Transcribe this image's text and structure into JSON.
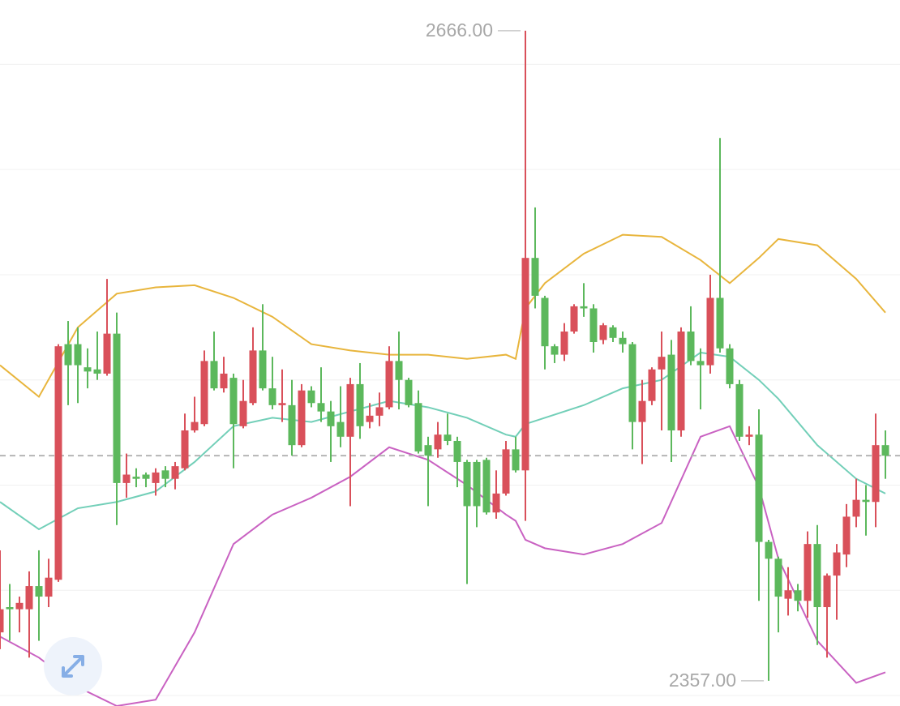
{
  "chart_data": {
    "type": "candlestick",
    "ylim": [
      2345,
      2680.6
    ],
    "grid_values": [
      2350,
      2400,
      2450,
      2500,
      2550,
      2600,
      2650
    ],
    "grid": true,
    "up_color": "#d9505a",
    "down_color": "#5cb85c",
    "last_price": 2464,
    "open": [
      2380,
      2392,
      2391,
      2391,
      2402,
      2397,
      2405,
      2517,
      2517,
      2506,
      2505,
      2503,
      2522,
      2451,
      2454,
      2455,
      2451,
      2457,
      2453,
      2458,
      2476,
      2479,
      2509,
      2496,
      2501,
      2478,
      2489,
      2514,
      2496,
      2488,
      2488,
      2469,
      2495,
      2489,
      2485,
      2480,
      2473,
      2498,
      2480,
      2483,
      2487,
      2509,
      2500,
      2489,
      2469,
      2467,
      2474,
      2471,
      2461,
      2461,
      2462,
      2437,
      2446,
      2467,
      2457,
      2558,
      2539,
      2516,
      2512,
      2523,
      2535,
      2534,
      2519,
      2525,
      2520,
      2517,
      2480,
      2490,
      2505,
      2512,
      2476,
      2523,
      2509,
      2507,
      2539,
      2515,
      2498,
      2473,
      2474,
      2423,
      2415,
      2396,
      2400,
      2395,
      2422,
      2392,
      2407,
      2417,
      2435,
      2443,
      2442,
      2469
    ],
    "high": [
      2419,
      2403,
      2397,
      2409,
      2419,
      2415,
      2517,
      2528,
      2525,
      2515,
      2523,
      2548,
      2532,
      2465,
      2458,
      2456,
      2458,
      2459,
      2461,
      2484,
      2492,
      2514,
      2523,
      2511,
      2503,
      2500,
      2525,
      2536,
      2511,
      2505,
      2500,
      2498,
      2497,
      2506,
      2490,
      2497,
      2501,
      2508,
      2489,
      2494,
      2516,
      2523,
      2501,
      2495,
      2473,
      2480,
      2484,
      2473,
      2462,
      2462,
      2463,
      2457,
      2471,
      2473,
      2666,
      2582,
      2540,
      2517,
      2527,
      2536,
      2546,
      2536,
      2527,
      2526,
      2523,
      2518,
      2500,
      2506,
      2523,
      2519,
      2525,
      2535,
      2515,
      2550,
      2615,
      2517,
      2500,
      2478,
      2486,
      2424,
      2416,
      2411,
      2403,
      2428,
      2431,
      2408,
      2422,
      2441,
      2453,
      2450,
      2484,
      2476
    ],
    "low": [
      2372,
      2376,
      2380,
      2368,
      2376,
      2392,
      2404,
      2488,
      2489,
      2496,
      2500,
      2502,
      2431,
      2444,
      2449,
      2449,
      2445,
      2449,
      2448,
      2457,
      2475,
      2478,
      2495,
      2494,
      2458,
      2477,
      2488,
      2495,
      2486,
      2480,
      2464,
      2468,
      2487,
      2480,
      2461,
      2468,
      2440,
      2472,
      2477,
      2478,
      2486,
      2486,
      2487,
      2465,
      2440,
      2463,
      2469,
      2449,
      2403,
      2430,
      2436,
      2434,
      2445,
      2456,
      2433,
      2534,
      2505,
      2508,
      2509,
      2522,
      2530,
      2513,
      2517,
      2518,
      2513,
      2467,
      2460,
      2488,
      2476,
      2461,
      2473,
      2507,
      2486,
      2503,
      2513,
      2496,
      2471,
      2469,
      2395,
      2357,
      2380,
      2388,
      2390,
      2387,
      2374,
      2368,
      2386,
      2411,
      2430,
      2426,
      2430,
      2453
    ],
    "close": [
      2391,
      2391,
      2394,
      2402,
      2397,
      2406,
      2516,
      2507,
      2507,
      2504,
      2503,
      2522,
      2451,
      2455,
      2453,
      2453,
      2456,
      2453,
      2459,
      2476,
      2480,
      2509,
      2496,
      2503,
      2479,
      2490,
      2514,
      2496,
      2488,
      2489,
      2469,
      2495,
      2489,
      2485,
      2478,
      2473,
      2498,
      2478,
      2483,
      2487,
      2509,
      2500,
      2488,
      2466,
      2464,
      2474,
      2471,
      2461,
      2440,
      2440,
      2437,
      2446,
      2467,
      2457,
      2558,
      2540,
      2516,
      2512,
      2523,
      2535,
      2534,
      2518,
      2526,
      2520,
      2517,
      2480,
      2490,
      2505,
      2511,
      2476,
      2523,
      2509,
      2507,
      2539,
      2515,
      2498,
      2473,
      2474,
      2423,
      2415,
      2397,
      2400,
      2395,
      2422,
      2392,
      2407,
      2418,
      2435,
      2443,
      2442,
      2469,
      2464
    ],
    "band_x": [
      0,
      4,
      8,
      12,
      16,
      20,
      24,
      28,
      32,
      36,
      40,
      44,
      48,
      52,
      53,
      54,
      56,
      60,
      64,
      68,
      72,
      75,
      78,
      80,
      84,
      88,
      91
    ],
    "bands": [
      {
        "color": "#e8b53c",
        "values": [
          2507,
          2492,
          2525,
          2541,
          2544,
          2545,
          2539,
          2530,
          2517,
          2514,
          2512,
          2512,
          2510,
          2512,
          2510,
          2534,
          2546,
          2560,
          2569,
          2568,
          2557,
          2546,
          2558,
          2567,
          2564,
          2548,
          2532
        ]
      },
      {
        "color": "#72cfb8",
        "values": [
          2442,
          2429,
          2439,
          2442,
          2447,
          2461,
          2478,
          2482,
          2480,
          2485,
          2490,
          2487,
          2482,
          2474,
          2473,
          2479,
          2482,
          2488,
          2496,
          2500,
          2513,
          2511,
          2500,
          2491,
          2469,
          2453,
          2446
        ]
      },
      {
        "color": "#c962c2",
        "values": [
          2378,
          2368,
          2354,
          2345,
          2348,
          2380,
          2422,
          2436,
          2444,
          2454,
          2468,
          2462,
          2450,
          2436,
          2433,
          2424,
          2420,
          2417,
          2422,
          2432,
          2473,
          2478,
          2449,
          2415,
          2376,
          2356,
          2361
        ]
      }
    ],
    "high_marker": {
      "value": 2666,
      "label": "2666.00",
      "index": 54
    },
    "low_marker": {
      "value": 2357,
      "label": "2357.00",
      "index": 79
    }
  }
}
